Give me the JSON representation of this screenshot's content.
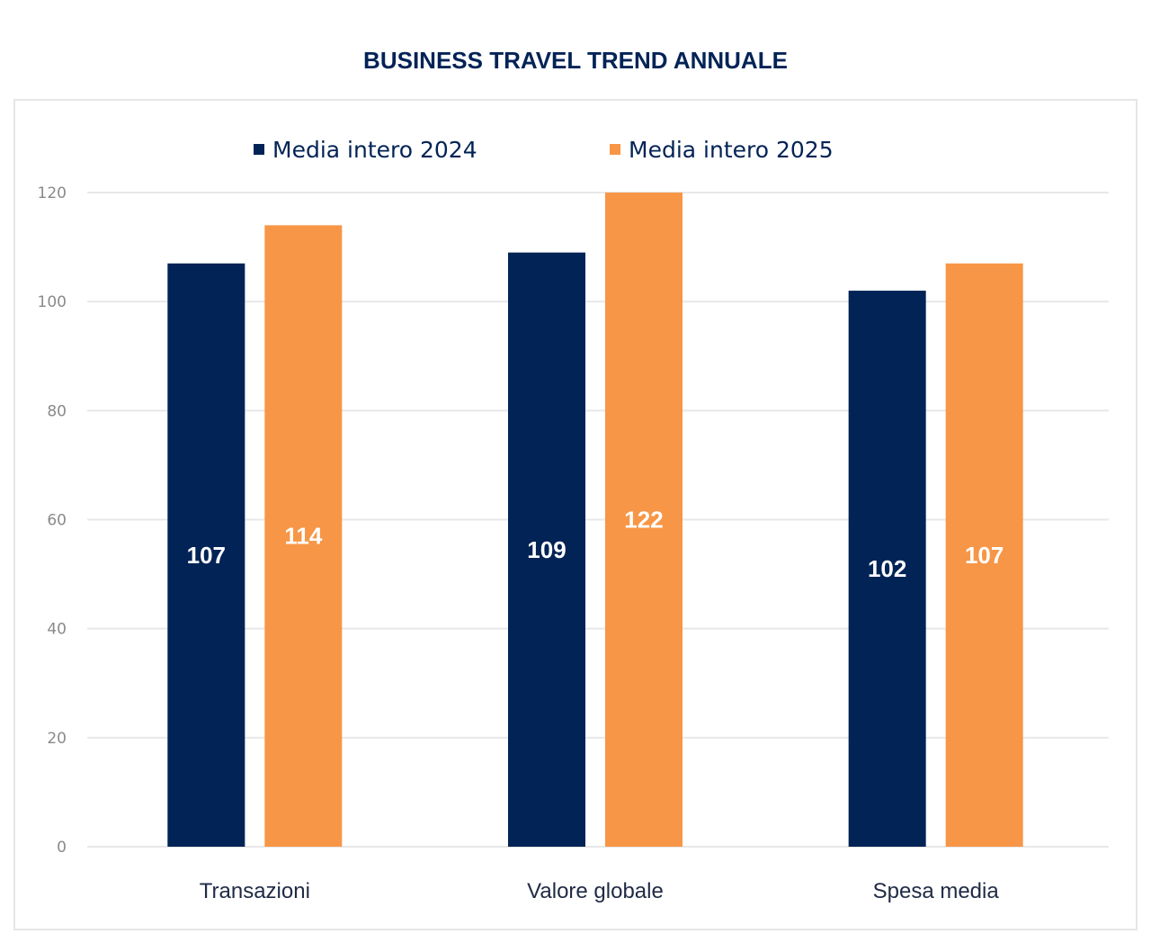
{
  "chart_data": {
    "type": "bar",
    "title": "BUSINESS TRAVEL TREND ANNUALE",
    "categories": [
      "Transazioni",
      "Valore globale",
      "Spesa media"
    ],
    "series": [
      {
        "name": "Media intero 2024",
        "values": [
          107,
          109,
          102
        ],
        "color": "#022356"
      },
      {
        "name": "Media intero 2025",
        "values": [
          114,
          122,
          107
        ],
        "color": "#F79646"
      }
    ],
    "ylim": [
      0,
      120
    ],
    "yticks": [
      0,
      20,
      40,
      60,
      80,
      100,
      120
    ],
    "grid": true,
    "legend": "top",
    "data_labels": true,
    "xlabel": "",
    "ylabel": ""
  }
}
